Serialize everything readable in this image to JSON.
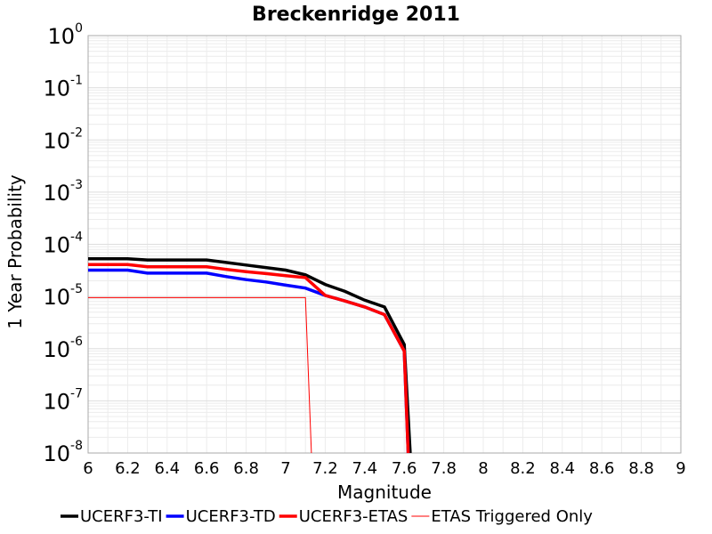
{
  "chart_data": {
    "type": "line",
    "title": "Breckenridge 2011",
    "xlabel": "Magnitude",
    "ylabel": "1 Year Probability",
    "xlim": [
      6,
      9
    ],
    "ylim": [
      1e-08,
      1
    ],
    "yscale": "log",
    "grid": true,
    "legend_position": "bottom",
    "x_ticks": [
      "6",
      "6.2",
      "6.4",
      "6.6",
      "6.8",
      "7",
      "7.2",
      "7.4",
      "7.6",
      "7.8",
      "8",
      "8.2",
      "8.4",
      "8.6",
      "8.8",
      "9"
    ],
    "y_ticks": [
      {
        "base": "10",
        "exp": "0"
      },
      {
        "base": "10",
        "exp": "-1"
      },
      {
        "base": "10",
        "exp": "-2"
      },
      {
        "base": "10",
        "exp": "-3"
      },
      {
        "base": "10",
        "exp": "-4"
      },
      {
        "base": "10",
        "exp": "-5"
      },
      {
        "base": "10",
        "exp": "-6"
      },
      {
        "base": "10",
        "exp": "-7"
      },
      {
        "base": "10",
        "exp": "-8"
      }
    ],
    "series": [
      {
        "name": "UCERF3-TI",
        "color": "#000000",
        "width": 3.5,
        "x": [
          6.0,
          6.2,
          6.3,
          6.6,
          6.8,
          7.0,
          7.1,
          7.2,
          7.3,
          7.4,
          7.5,
          7.6,
          7.63
        ],
        "y": [
          5.3e-05,
          5.3e-05,
          5e-05,
          5e-05,
          4e-05,
          3.2e-05,
          2.6e-05,
          1.7e-05,
          1.25e-05,
          8.5e-06,
          6.3e-06,
          1.2e-06,
          1e-08
        ]
      },
      {
        "name": "UCERF3-TD",
        "color": "#0000ff",
        "width": 3.5,
        "x": [
          6.0,
          6.2,
          6.3,
          6.6,
          6.7,
          6.8,
          6.9,
          7.0,
          7.1,
          7.2,
          7.3,
          7.4,
          7.5,
          7.6,
          7.62
        ],
        "y": [
          3.2e-05,
          3.2e-05,
          2.8e-05,
          2.8e-05,
          2.4e-05,
          2.1e-05,
          1.9e-05,
          1.65e-05,
          1.45e-05,
          1.05e-05,
          8.2e-06,
          6.3e-06,
          4.5e-06,
          9e-07,
          1e-08
        ]
      },
      {
        "name": "UCERF3-ETAS",
        "color": "#ff0000",
        "width": 3.5,
        "x": [
          6.0,
          6.2,
          6.3,
          6.6,
          6.7,
          6.8,
          6.9,
          7.0,
          7.1,
          7.2,
          7.3,
          7.4,
          7.5,
          7.6,
          7.62
        ],
        "y": [
          4.1e-05,
          4.1e-05,
          3.7e-05,
          3.7e-05,
          3.3e-05,
          3e-05,
          2.75e-05,
          2.5e-05,
          2.3e-05,
          1.05e-05,
          8.2e-06,
          6.3e-06,
          4.5e-06,
          9e-07,
          1e-08
        ]
      },
      {
        "name": "ETAS Triggered Only",
        "color": "#ff0000",
        "width": 1,
        "x": [
          6.0,
          7.1,
          7.13
        ],
        "y": [
          9.5e-06,
          9.5e-06,
          1e-08
        ]
      }
    ]
  }
}
